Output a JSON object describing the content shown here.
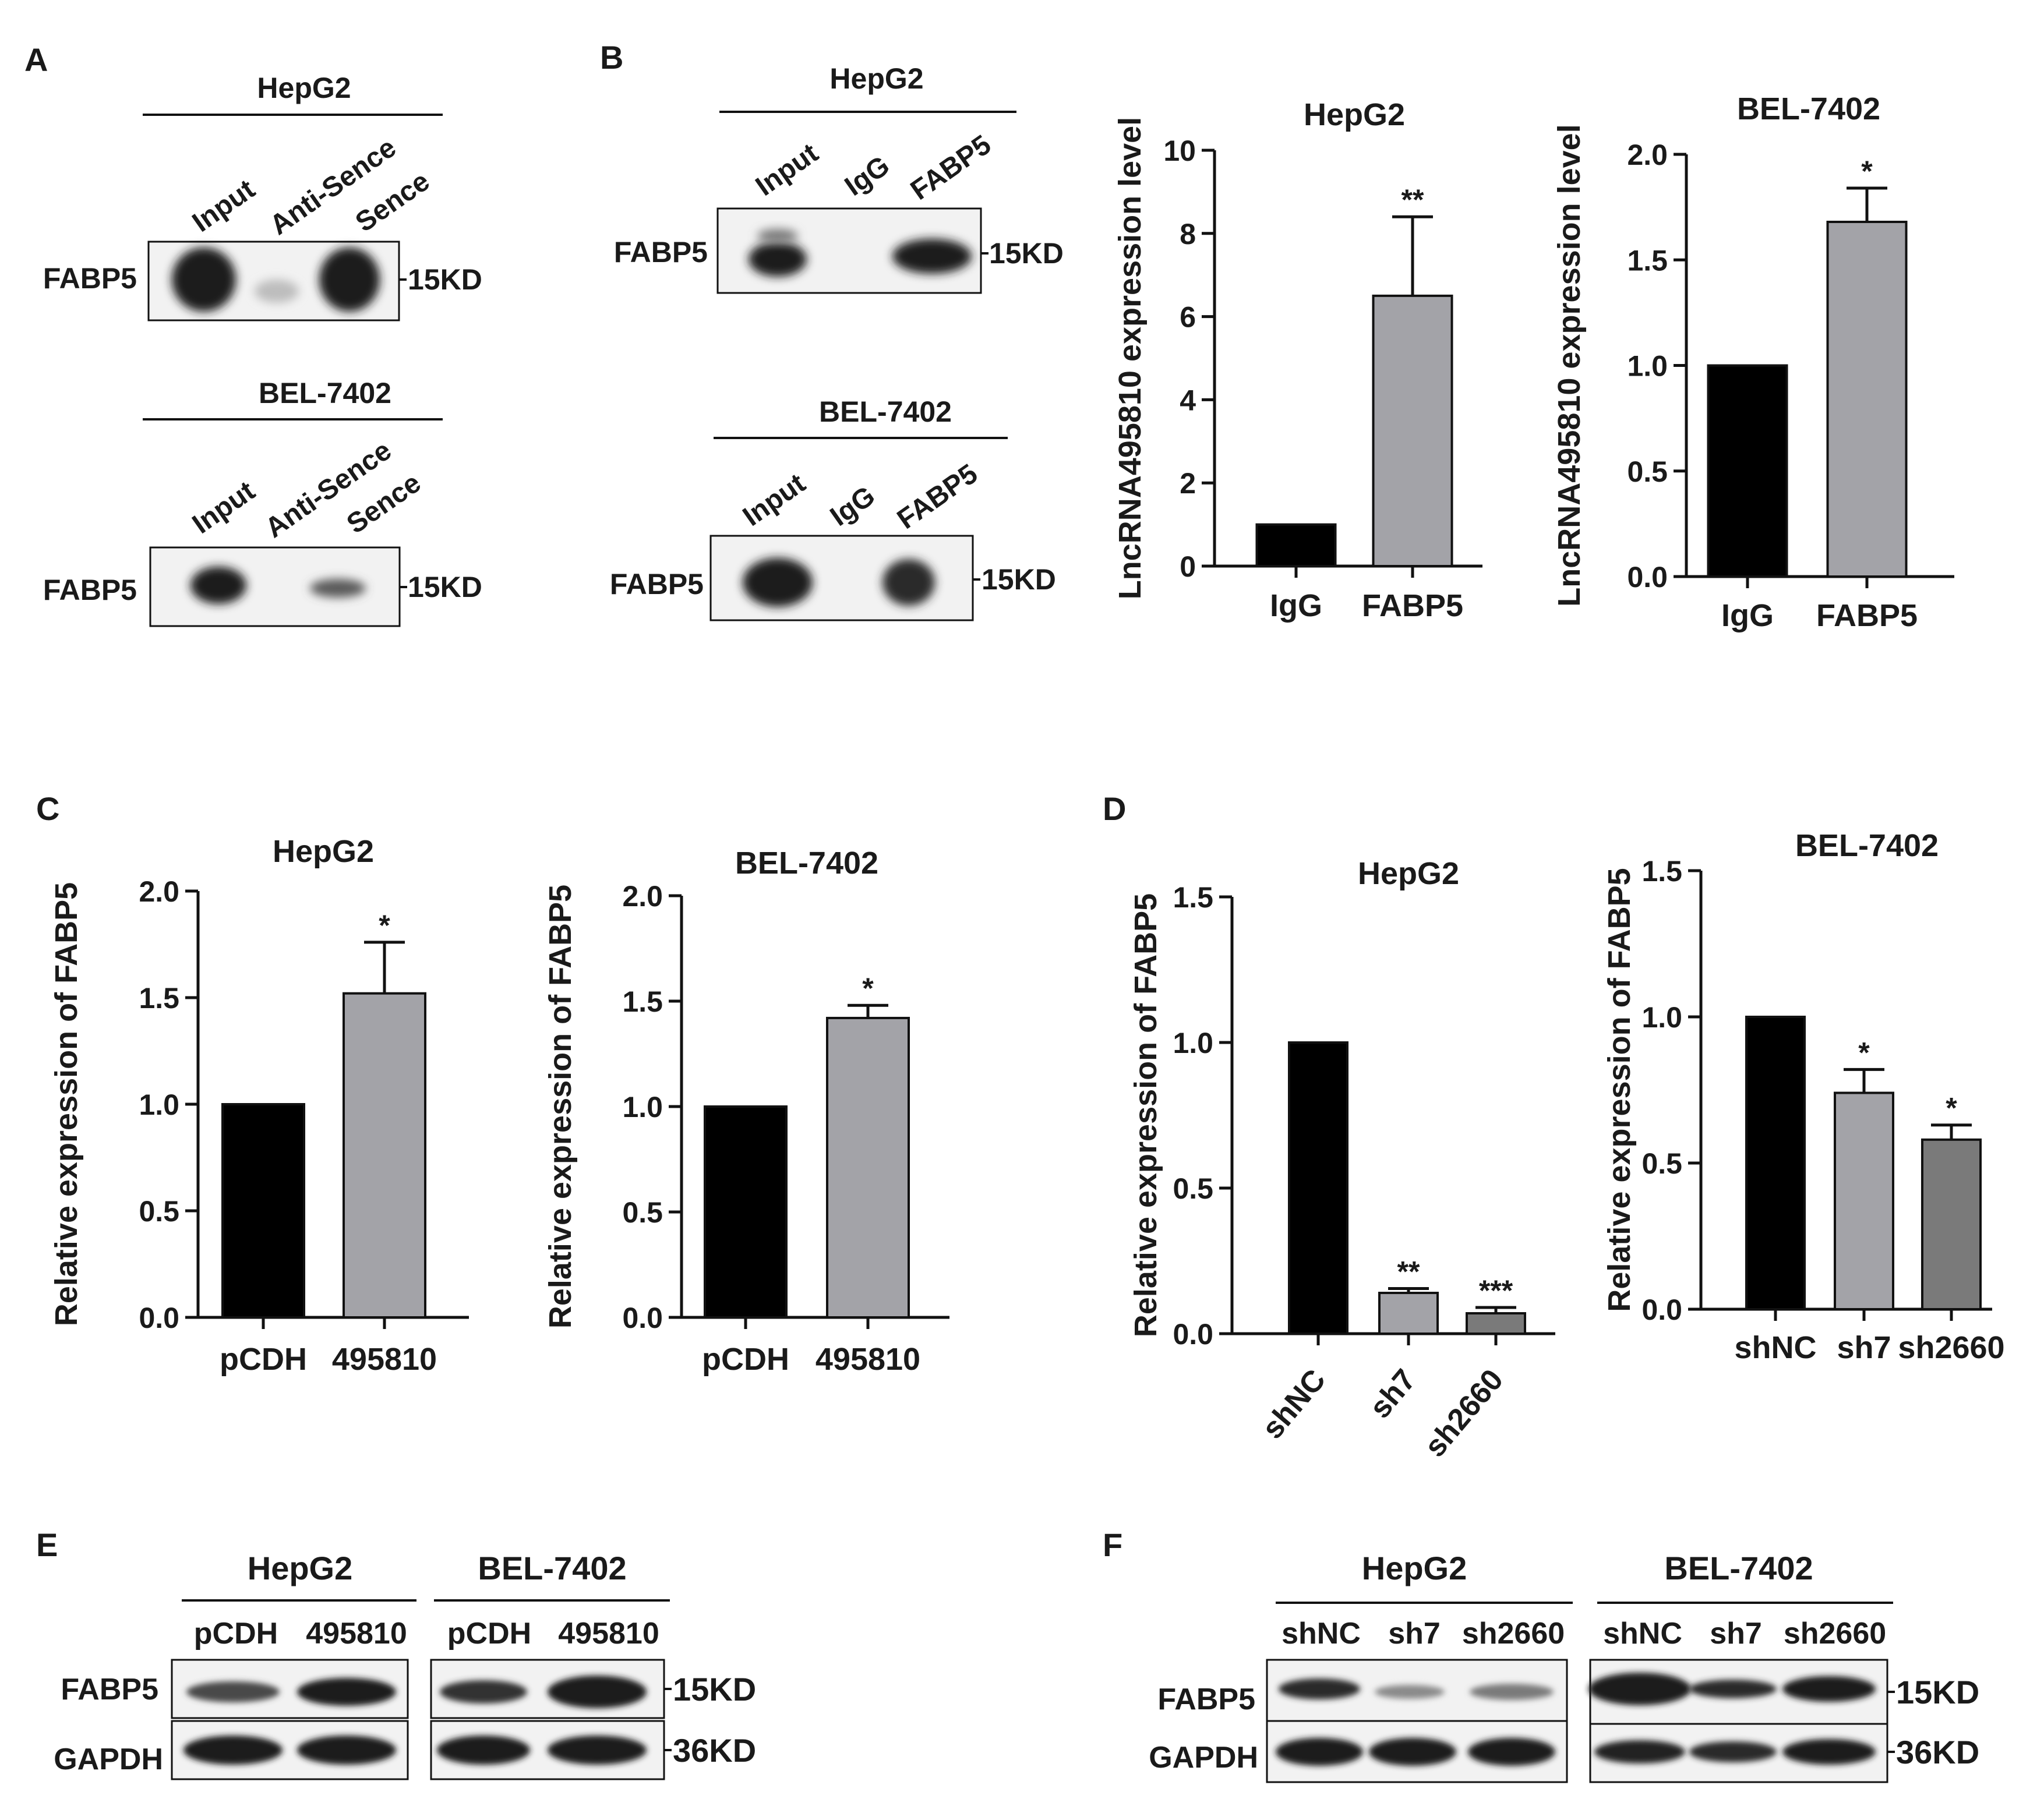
{
  "colors": {
    "black_bar": "#000000",
    "gray_bar": "#a3a3a8",
    "dark_gray_bar": "#7a7a7a",
    "blot_bg": "#f2f2f2",
    "band": "#1c1c1c"
  },
  "panel_labels": [
    "A",
    "B",
    "C",
    "D",
    "E",
    "F"
  ],
  "blots": {
    "A_top": {
      "cell": "HepG2",
      "lanes": [
        "Input",
        "Anti-Sence",
        "Sence"
      ],
      "rows": [
        {
          "protein": "FABP5",
          "size": "15KD"
        }
      ]
    },
    "A_bottom": {
      "cell": "BEL-7402",
      "lanes": [
        "Input",
        "Anti-Sence",
        "Sence"
      ],
      "rows": [
        {
          "protein": "FABP5",
          "size": "15KD"
        }
      ]
    },
    "B_top": {
      "cell": "HepG2",
      "lanes": [
        "Input",
        "IgG",
        "FABP5"
      ],
      "rows": [
        {
          "protein": "FABP5",
          "size": "15KD"
        }
      ]
    },
    "B_bottom": {
      "cell": "BEL-7402",
      "lanes": [
        "Input",
        "IgG",
        "FABP5"
      ],
      "rows": [
        {
          "protein": "FABP5",
          "size": "15KD"
        }
      ]
    },
    "E": {
      "cells": [
        "HepG2",
        "BEL-7402"
      ],
      "lanes": [
        "pCDH",
        "495810",
        "pCDH",
        "495810"
      ],
      "rows": [
        {
          "protein": "FABP5",
          "size": "15KD"
        },
        {
          "protein": "GAPDH",
          "size": "36KD"
        }
      ]
    },
    "F": {
      "cells": [
        "HepG2",
        "BEL-7402"
      ],
      "lanes": [
        "shNC",
        "sh7",
        "sh2660",
        "shNC",
        "sh7",
        "sh2660"
      ],
      "rows": [
        {
          "protein": "FABP5",
          "size": "15KD"
        },
        {
          "protein": "GAPDH",
          "size": "36KD"
        }
      ]
    }
  },
  "chart_data": [
    {
      "id": "B_hepg2",
      "type": "bar",
      "title": "HepG2",
      "ylabel": "LncRNA495810 expression level",
      "categories": [
        "IgG",
        "FABP5"
      ],
      "values": [
        1.0,
        6.5
      ],
      "errors": [
        0,
        1.9
      ],
      "significance": [
        "",
        "**"
      ],
      "ylim": [
        0,
        10
      ],
      "yticks": [
        "0",
        "2",
        "4",
        "6",
        "8",
        "10"
      ]
    },
    {
      "id": "B_bel7402",
      "type": "bar",
      "title": "BEL-7402",
      "ylabel": "LncRNA495810 expression level",
      "categories": [
        "IgG",
        "FABP5"
      ],
      "values": [
        1.0,
        1.68
      ],
      "errors": [
        0,
        0.16
      ],
      "significance": [
        "",
        "*"
      ],
      "ylim": [
        0,
        2.0
      ],
      "yticks": [
        "0.0",
        "0.5",
        "1.0",
        "1.5",
        "2.0"
      ]
    },
    {
      "id": "C_hepg2",
      "type": "bar",
      "title": "HepG2",
      "ylabel": "Relative expression of FABP5",
      "categories": [
        "pCDH",
        "495810"
      ],
      "values": [
        1.0,
        1.52
      ],
      "errors": [
        0,
        0.24
      ],
      "significance": [
        "",
        "*"
      ],
      "ylim": [
        0,
        2.0
      ],
      "yticks": [
        "0.0",
        "0.5",
        "1.0",
        "1.5",
        "2.0"
      ]
    },
    {
      "id": "C_bel7402",
      "type": "bar",
      "title": "BEL-7402",
      "ylabel": "Relative expression of FABP5",
      "categories": [
        "pCDH",
        "495810"
      ],
      "values": [
        1.0,
        1.42
      ],
      "errors": [
        0,
        0.06
      ],
      "significance": [
        "",
        "*"
      ],
      "ylim": [
        0,
        2.0
      ],
      "yticks": [
        "0.0",
        "0.5",
        "1.0",
        "1.5",
        "2.0"
      ]
    },
    {
      "id": "D_hepg2",
      "type": "bar",
      "title": "HepG2",
      "ylabel": "Relative expression of FABP5",
      "categories": [
        "shNC",
        "sh7",
        "sh2660"
      ],
      "values": [
        1.0,
        0.14,
        0.07
      ],
      "errors": [
        0,
        0.015,
        0.02
      ],
      "significance": [
        "",
        "**",
        "***"
      ],
      "ylim": [
        0,
        1.5
      ],
      "yticks": [
        "0.0",
        "0.5",
        "1.0",
        "1.5"
      ]
    },
    {
      "id": "D_bel7402",
      "type": "bar",
      "title": "BEL-7402",
      "ylabel": "Relative  expression of FABP5",
      "categories": [
        "shNC",
        "sh7",
        "sh2660"
      ],
      "values": [
        1.0,
        0.74,
        0.58
      ],
      "errors": [
        0,
        0.08,
        0.05
      ],
      "significance": [
        "",
        "*",
        "*"
      ],
      "ylim": [
        0,
        1.5
      ],
      "yticks": [
        "0.0",
        "0.5",
        "1.0",
        "1.5"
      ]
    }
  ]
}
